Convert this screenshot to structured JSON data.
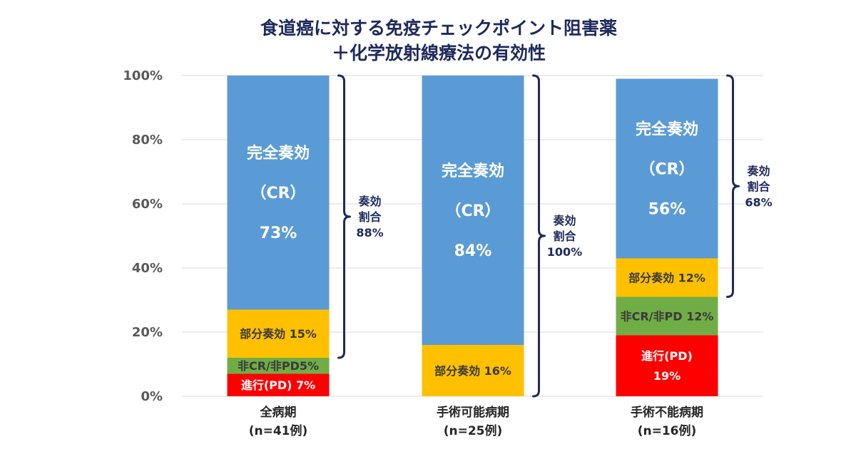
{
  "chart_data": {
    "type": "bar",
    "stacked": true,
    "title_line1": "食道癌に対する免疫チェックポイント阻害薬",
    "title_line2": "＋化学放射線療法の有効性",
    "xlabel": "",
    "ylabel": "",
    "ylim": [
      0,
      100
    ],
    "y_ticks": [
      "0%",
      "20%",
      "40%",
      "60%",
      "80%",
      "100%"
    ],
    "grid": true,
    "categories": [
      {
        "line1": "全病期",
        "line2": "(n=41例)"
      },
      {
        "line1": "手術可能病期",
        "line2": "(n=25例)"
      },
      {
        "line1": "手術不能病期",
        "line2": "(n=16例)"
      }
    ],
    "series": [
      {
        "name": "進行(PD)",
        "color": "#ff0000",
        "values": [
          7,
          0,
          19
        ]
      },
      {
        "name": "非CR/非PD",
        "color": "#70ad47",
        "values": [
          5,
          0,
          12
        ]
      },
      {
        "name": "部分奏効",
        "color": "#ffc000",
        "values": [
          15,
          16,
          12
        ]
      },
      {
        "name": "完全奏効",
        "color": "#5b9bd5",
        "values": [
          73,
          84,
          56
        ]
      }
    ],
    "segment_labels": [
      [
        {
          "lines": [
            "進行(PD) 7%"
          ],
          "style": "light"
        },
        {
          "lines": [
            "非CR/非PD5%"
          ],
          "style": "dark"
        },
        {
          "lines": [
            "部分奏効 15%"
          ],
          "style": "dark"
        },
        {
          "lines": [
            "完全奏効",
            "（CR）",
            "73%"
          ],
          "style": "light"
        }
      ],
      [
        null,
        null,
        {
          "lines": [
            "部分奏効 16%"
          ],
          "style": "dark"
        },
        {
          "lines": [
            "完全奏効",
            "（CR）",
            "84%"
          ],
          "style": "light"
        }
      ],
      [
        {
          "lines": [
            "進行(PD)",
            "19%"
          ],
          "style": "light"
        },
        {
          "lines": [
            "非CR/非PD 12%"
          ],
          "style": "dark"
        },
        {
          "lines": [
            "部分奏効 12%"
          ],
          "style": "dark"
        },
        {
          "lines": [
            "完全奏効",
            "（CR）",
            "56%"
          ],
          "style": "light"
        }
      ]
    ],
    "response_rates": [
      {
        "lines": [
          "奏効",
          "割合",
          "88%"
        ],
        "from": 12,
        "to": 100
      },
      {
        "lines": [
          "奏効",
          "割合",
          "100%"
        ],
        "from": 0,
        "to": 100
      },
      {
        "lines": [
          "奏効",
          "割合",
          "68%"
        ],
        "from": 31,
        "to": 100
      }
    ],
    "colors": {
      "bracket": "#1f2a5c",
      "grid": "#d9d9d9"
    }
  }
}
